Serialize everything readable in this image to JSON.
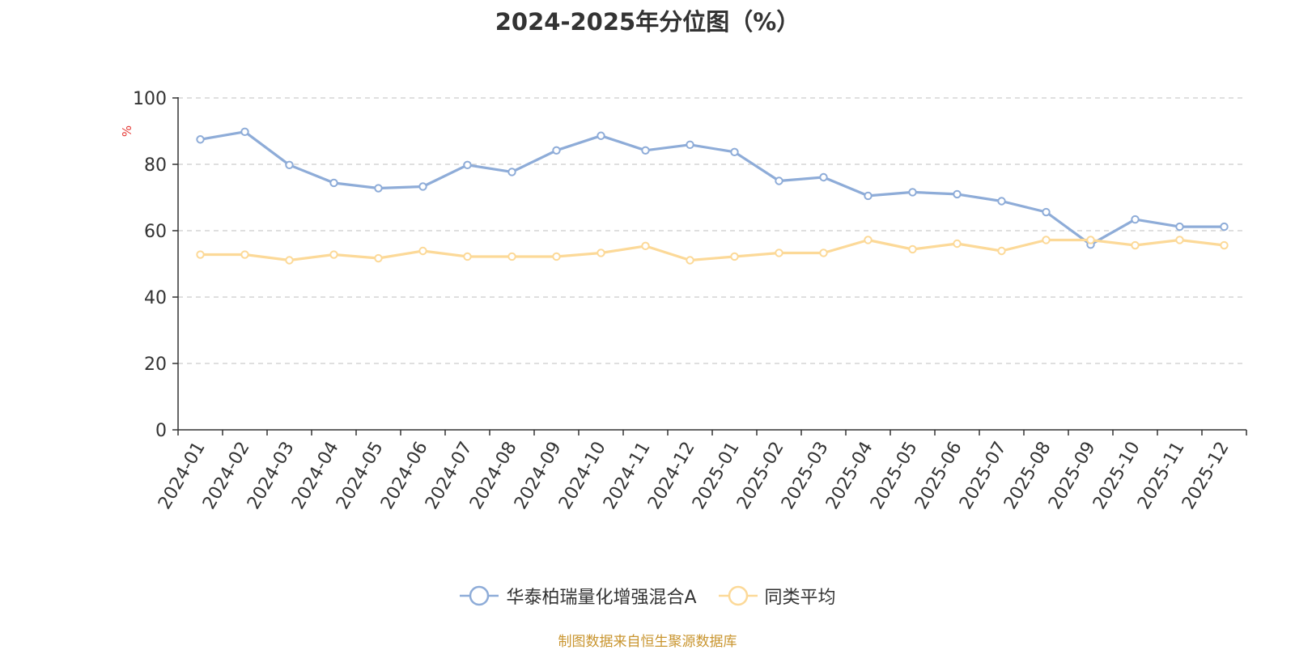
{
  "chart_data": {
    "type": "line",
    "title": "2024-2025年分位图（%）",
    "ylabel": "%",
    "xlabel": "",
    "ylim": [
      0,
      100
    ],
    "yticks": [
      0,
      20,
      40,
      60,
      80,
      100
    ],
    "grid": true,
    "legend_position": "bottom-center",
    "categories": [
      "2024-01",
      "2024-02",
      "2024-03",
      "2024-04",
      "2024-05",
      "2024-06",
      "2024-07",
      "2024-08",
      "2024-09",
      "2024-10",
      "2024-11",
      "2024-12",
      "2025-01",
      "2025-02",
      "2025-03",
      "2025-04",
      "2025-05",
      "2025-06",
      "2025-07",
      "2025-08",
      "2025-09",
      "2025-10",
      "2025-11",
      "2025-12"
    ],
    "series": [
      {
        "name": "华泰柏瑞量化增强混合A",
        "color": "#8eacd8",
        "values": [
          87.5,
          89.8,
          79.8,
          74.4,
          72.8,
          73.3,
          79.8,
          77.7,
          84.2,
          88.6,
          84.2,
          85.9,
          83.7,
          75.0,
          76.1,
          70.5,
          71.6,
          71.0,
          68.9,
          65.6,
          55.8,
          63.4,
          61.2,
          61.2
        ]
      },
      {
        "name": "同类平均",
        "color": "#fcd998",
        "values": [
          52.8,
          52.8,
          51.1,
          52.8,
          51.7,
          53.9,
          52.2,
          52.2,
          52.2,
          53.3,
          55.4,
          51.1,
          52.2,
          53.3,
          53.3,
          57.2,
          54.4,
          56.1,
          53.9,
          57.2,
          57.2,
          55.6,
          57.2,
          55.6
        ]
      }
    ]
  },
  "source_note": "制图数据来自恒生聚源数据库"
}
